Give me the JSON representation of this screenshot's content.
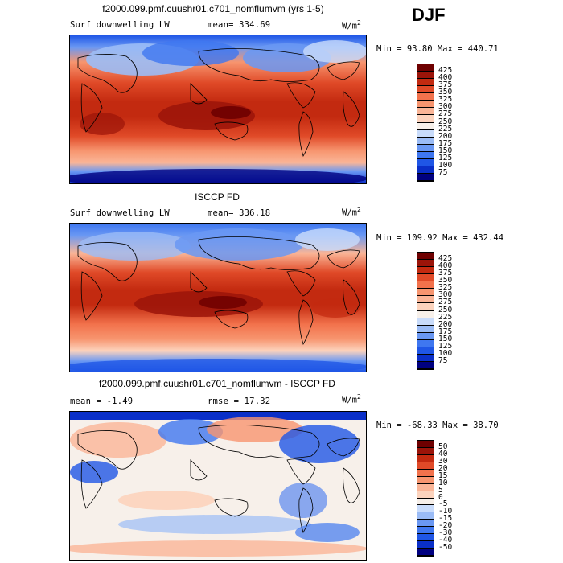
{
  "season": "DJF",
  "panels": [
    {
      "title": "f2000.099.pmf.cuushr01.c701_nomflumvm (yrs 1-5)",
      "field_label": "Surf downwelling LW",
      "stat_text": "mean= 334.69",
      "rmse_text": "",
      "unit": "W/m",
      "unit_sup": "2",
      "minmax": "Min =  93.80 Max = 440.71",
      "colorbar": {
        "colors": [
          "#000080",
          "#0a2fc8",
          "#1f56e6",
          "#3f77f0",
          "#6a98f3",
          "#9bbcf6",
          "#c9dcfb",
          "#f7f0ea",
          "#fcd3bd",
          "#fab597",
          "#f7956f",
          "#f2724c",
          "#e04a28",
          "#c32a10",
          "#9b1409",
          "#6e0000"
        ],
        "labels": [
          "75",
          "100",
          "125",
          "150",
          "175",
          "200",
          "225",
          "250",
          "275",
          "300",
          "325",
          "350",
          "375",
          "400",
          "425"
        ]
      }
    },
    {
      "title": "ISCCP FD",
      "field_label": "Surf downwelling LW",
      "stat_text": "mean= 336.18",
      "rmse_text": "",
      "unit": "W/m",
      "unit_sup": "2",
      "minmax": "Min = 109.92 Max = 432.44",
      "colorbar": {
        "colors": [
          "#000080",
          "#0a2fc8",
          "#1f56e6",
          "#3f77f0",
          "#6a98f3",
          "#9bbcf6",
          "#c9dcfb",
          "#f7f0ea",
          "#fcd3bd",
          "#fab597",
          "#f7956f",
          "#f2724c",
          "#e04a28",
          "#c32a10",
          "#9b1409",
          "#6e0000"
        ],
        "labels": [
          "75",
          "100",
          "125",
          "150",
          "175",
          "200",
          "225",
          "250",
          "275",
          "300",
          "325",
          "350",
          "375",
          "400",
          "425"
        ]
      }
    },
    {
      "title": "f2000.099.pmf.cuushr01.c701_nomflumvm - ISCCP FD",
      "field_label": "mean =  -1.49",
      "stat_text": "",
      "rmse_text": "rmse =  17.32",
      "unit": "W/m",
      "unit_sup": "2",
      "minmax": "Min = -68.33 Max =  38.70",
      "colorbar": {
        "colors": [
          "#000080",
          "#0a2fc8",
          "#1f56e6",
          "#3f77f0",
          "#6a98f3",
          "#9bbcf6",
          "#c9dcfb",
          "#f7f0ea",
          "#fcd3bd",
          "#fab597",
          "#f7956f",
          "#f2724c",
          "#e04a28",
          "#c32a10",
          "#9b1409",
          "#6e0000"
        ],
        "labels": [
          "-50",
          "-40",
          "-30",
          "-20",
          "-15",
          "-10",
          "-5",
          "0",
          "5",
          "10",
          "15",
          "20",
          "30",
          "40",
          "50"
        ]
      }
    }
  ]
}
